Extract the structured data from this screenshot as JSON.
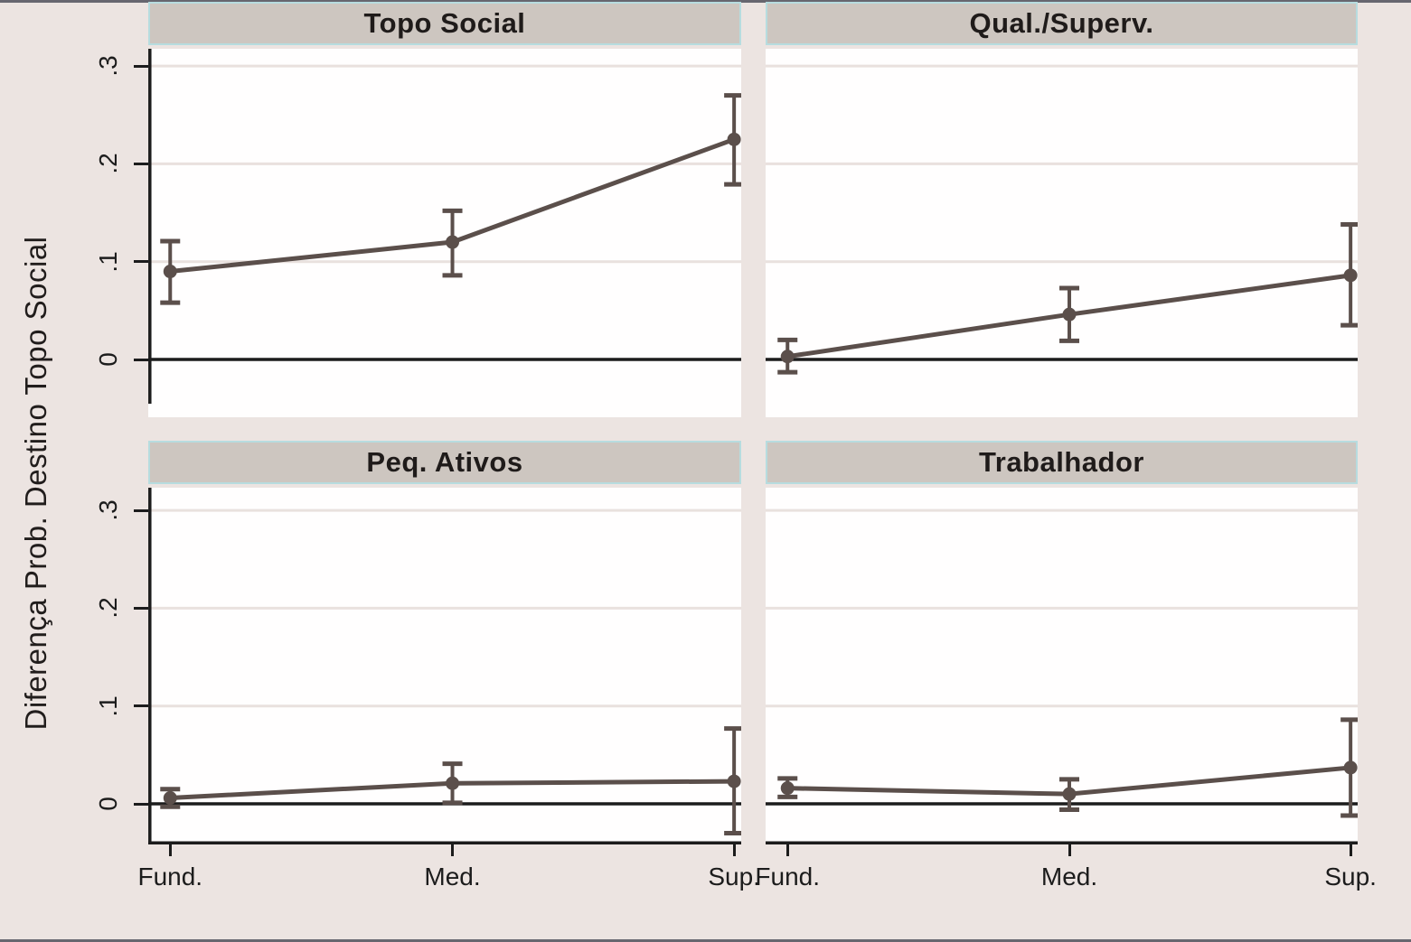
{
  "figure": {
    "ylabel": "Diferença Prob. Destino Topo Social",
    "x_categories": [
      "Fund.",
      "Med.",
      "Sup."
    ],
    "y_tick_labels": [
      "0",
      ".1",
      ".2",
      ".3"
    ],
    "colors": {
      "background": "#ece4e1",
      "plot_background": "#fffefe",
      "banner_fill": "#cdc6c0",
      "banner_border": "#b7dcdf",
      "gridline": "#e9e1de",
      "axis": "#1c1c1c",
      "series": "#5b4f4b"
    }
  },
  "chart_data": [
    {
      "type": "line",
      "title": "Topo Social",
      "categories": [
        "Fund.",
        "Med.",
        "Sup."
      ],
      "values": [
        0.09,
        0.12,
        0.225
      ],
      "ci_low": [
        0.058,
        0.086,
        0.179
      ],
      "ci_high": [
        0.121,
        0.152,
        0.27
      ],
      "yticks": [
        0,
        0.1,
        0.2,
        0.3
      ],
      "ylim": [
        -0.059,
        0.318
      ],
      "grid": true,
      "zero_reference_line": true
    },
    {
      "type": "line",
      "title": "Qual./Superv.",
      "categories": [
        "Fund.",
        "Med.",
        "Sup."
      ],
      "values": [
        0.003,
        0.046,
        0.086
      ],
      "ci_low": [
        -0.013,
        0.019,
        0.035
      ],
      "ci_high": [
        0.02,
        0.073,
        0.138
      ],
      "yticks": [
        0,
        0.1,
        0.2,
        0.3
      ],
      "ylim": [
        -0.059,
        0.318
      ],
      "grid": true,
      "zero_reference_line": true
    },
    {
      "type": "line",
      "title": "Peq. Ativos",
      "categories": [
        "Fund.",
        "Med.",
        "Sup."
      ],
      "values": [
        0.006,
        0.021,
        0.023
      ],
      "ci_low": [
        -0.003,
        0.001,
        -0.03
      ],
      "ci_high": [
        0.015,
        0.041,
        0.077
      ],
      "yticks": [
        0,
        0.1,
        0.2,
        0.3
      ],
      "ylim": [
        -0.04,
        0.325
      ],
      "grid": true,
      "zero_reference_line": true
    },
    {
      "type": "line",
      "title": "Trabalhador",
      "categories": [
        "Fund.",
        "Med.",
        "Sup."
      ],
      "values": [
        0.016,
        0.01,
        0.037
      ],
      "ci_low": [
        0.007,
        -0.006,
        -0.012
      ],
      "ci_high": [
        0.026,
        0.025,
        0.086
      ],
      "yticks": [
        0,
        0.1,
        0.2,
        0.3
      ],
      "ylim": [
        -0.04,
        0.325
      ],
      "grid": true,
      "zero_reference_line": true
    }
  ]
}
